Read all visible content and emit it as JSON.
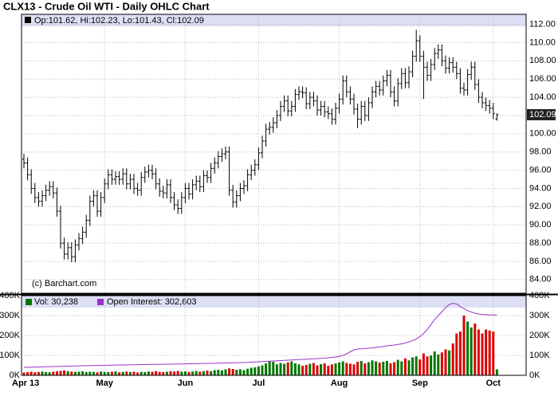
{
  "chart_data": {
    "type": "ohlc",
    "title": "CLX13 - Crude Oil WTI - Daily OHLC Chart",
    "legend_text": "Op:101.62, Hi:102.23, Lo:101.43, Cl:102.09",
    "credit": "(c) Barchart.com",
    "last_label": "102.09",
    "up_color": "#007700",
    "down_color": "#dd0000",
    "bar_color": "#000000",
    "oi_color": "#9933cc",
    "grid": true,
    "categories": [
      "Apr 13",
      null,
      null,
      null,
      null,
      null,
      null,
      null,
      null,
      null,
      null,
      null,
      null,
      null,
      null,
      null,
      null,
      null,
      null,
      null,
      null,
      null,
      "May",
      null,
      null,
      null,
      null,
      null,
      null,
      null,
      null,
      null,
      null,
      null,
      null,
      null,
      null,
      null,
      null,
      null,
      null,
      null,
      null,
      null,
      "Jun",
      null,
      null,
      null,
      null,
      null,
      null,
      null,
      null,
      null,
      null,
      null,
      null,
      null,
      null,
      null,
      null,
      null,
      null,
      null,
      "Jul",
      null,
      null,
      null,
      null,
      null,
      null,
      null,
      null,
      null,
      null,
      null,
      null,
      null,
      null,
      null,
      null,
      null,
      null,
      null,
      null,
      null,
      "Aug",
      null,
      null,
      null,
      null,
      null,
      null,
      null,
      null,
      null,
      null,
      null,
      null,
      null,
      null,
      null,
      null,
      null,
      null,
      null,
      null,
      null,
      "Sep",
      null,
      null,
      null,
      null,
      null,
      null,
      null,
      null,
      null,
      null,
      null,
      null,
      null,
      null,
      null,
      null,
      null,
      null,
      null,
      "Oct",
      null
    ],
    "open": [
      97.2,
      96.8,
      95.5,
      94,
      93,
      92.6,
      93.2,
      93.8,
      94.2,
      93.5,
      91.5,
      88,
      86.8,
      87.5,
      86.5,
      87.8,
      88.5,
      89.2,
      90.5,
      92.6,
      93.2,
      91.5,
      93,
      94.5,
      95.5,
      95,
      95.3,
      95,
      95.6,
      94.5,
      95,
      94,
      93.8,
      95.2,
      95.8,
      96,
      95.6,
      94.5,
      93.7,
      93.5,
      94.4,
      93,
      92.2,
      91.8,
      93,
      94,
      93.4,
      94.4,
      94.8,
      94.2,
      95.4,
      95.2,
      96.2,
      96.8,
      97.5,
      97.8,
      98,
      93.8,
      92.5,
      93.2,
      94,
      94.3,
      95.5,
      96,
      96.6,
      97.9,
      99.2,
      100.5,
      100.7,
      101.2,
      102,
      103,
      103.6,
      102.5,
      103,
      104.3,
      104.6,
      104.5,
      103.3,
      104,
      103.6,
      102.6,
      103,
      102.4,
      102.2,
      101.6,
      102.8,
      103.8,
      105.8,
      104.6,
      103.8,
      102.7,
      101.6,
      103,
      102,
      103.4,
      104.6,
      105.2,
      104.8,
      105.8,
      106.4,
      104.6,
      103.6,
      105.5,
      106.6,
      105.6,
      106.8,
      108.5,
      110.2,
      108.5,
      107.3,
      106.4,
      107.6,
      108.8,
      109.2,
      108,
      107.2,
      107.8,
      107.3,
      106.6,
      105,
      104.8,
      106.5,
      107.3,
      105.4,
      104,
      103.4,
      103.1,
      102.8,
      101.62
    ],
    "high": [
      97.8,
      97.4,
      96.1,
      94.6,
      93.6,
      93.8,
      94.4,
      94.8,
      94.8,
      94.1,
      92.1,
      88.6,
      88.1,
      88.1,
      88.4,
      89.1,
      89.8,
      91.1,
      93.2,
      93.8,
      93.8,
      93.6,
      95.1,
      96.1,
      96.1,
      95.9,
      95.9,
      96.2,
      96.2,
      95.6,
      95.6,
      94.6,
      95.8,
      96.4,
      96.6,
      96.6,
      96.2,
      95.1,
      94.3,
      95,
      95,
      93.6,
      92.8,
      93.6,
      94.6,
      94.6,
      95,
      95.4,
      95.4,
      96,
      96,
      96.8,
      97.4,
      98.1,
      98.4,
      98.6,
      98.6,
      94.4,
      93.8,
      94.6,
      94.9,
      96.1,
      96.6,
      97.2,
      98.5,
      99.8,
      101.1,
      101.3,
      101.8,
      102.6,
      103.6,
      104.2,
      104.2,
      103.6,
      104.9,
      105.2,
      105.2,
      105.1,
      104.6,
      104.6,
      104.2,
      103.6,
      103.6,
      103,
      102.8,
      103.4,
      104.4,
      106.4,
      106.4,
      105.2,
      104.4,
      103.3,
      103.6,
      103.6,
      104,
      105.2,
      105.8,
      105.8,
      106.4,
      107,
      107,
      105.2,
      106.1,
      107.2,
      107.2,
      107.4,
      109.1,
      111.4,
      110.8,
      109.1,
      107.9,
      108.2,
      109.4,
      109.8,
      109.8,
      108.6,
      108.4,
      108.4,
      107.9,
      107.2,
      105.6,
      107.1,
      107.9,
      107.9,
      106,
      104.6,
      104,
      103.7,
      103.4,
      102.23
    ],
    "low": [
      96.2,
      94.9,
      93.4,
      92.4,
      92,
      92,
      92.6,
      93.2,
      92.9,
      90.9,
      87.4,
      86.2,
      86.2,
      85.9,
      85.9,
      87.2,
      87.9,
      88.6,
      89.9,
      92,
      90.9,
      90.9,
      92.4,
      93.9,
      94.4,
      94.4,
      94.4,
      94.4,
      93.9,
      93.9,
      93.4,
      93.2,
      93.2,
      94.6,
      95.2,
      95,
      93.9,
      93.1,
      92.9,
      92.9,
      92.4,
      91.6,
      91.2,
      91.2,
      92.4,
      92.8,
      92.8,
      93.8,
      93.6,
      93.6,
      94.6,
      94.6,
      95.6,
      96.2,
      96.9,
      97.2,
      93.2,
      91.9,
      91.9,
      92.6,
      93.4,
      93.7,
      94.9,
      95.4,
      96,
      97.3,
      98.6,
      99.9,
      100.1,
      100.6,
      101.4,
      102.4,
      101.9,
      101.9,
      102.4,
      103.7,
      103.9,
      102.7,
      102.7,
      103,
      102,
      102,
      101.8,
      101.6,
      101,
      101,
      102.2,
      103.2,
      104,
      103.2,
      102.1,
      100.6,
      101,
      101.4,
      101.4,
      102.8,
      104,
      104.2,
      104.2,
      105.2,
      104,
      103,
      103,
      104.9,
      105,
      105,
      106.2,
      107.9,
      107.9,
      103.8,
      105.8,
      105.8,
      107,
      108.2,
      107.4,
      106.6,
      106.6,
      106.7,
      106,
      104.4,
      104.2,
      104.2,
      105.9,
      104.8,
      103.4,
      102.8,
      102.5,
      102.2,
      101.6,
      101.43
    ],
    "close": [
      96.8,
      95.5,
      94,
      93,
      92.6,
      93.2,
      93.8,
      94.2,
      93.5,
      91.5,
      88,
      86.8,
      87.5,
      86.5,
      87.8,
      88.5,
      89.2,
      90.5,
      92.6,
      93.2,
      91.5,
      93,
      94.5,
      95.5,
      95,
      95.3,
      95,
      95.6,
      94.5,
      95,
      94,
      93.8,
      95.2,
      95.8,
      96,
      95.6,
      94.5,
      93.7,
      93.5,
      94.4,
      93,
      92.2,
      91.8,
      93,
      94,
      93.4,
      94.4,
      94.8,
      94.2,
      95.4,
      95.2,
      96.2,
      96.8,
      97.5,
      97.8,
      98,
      93.8,
      92.5,
      93.2,
      94,
      94.3,
      95.5,
      96,
      96.6,
      97.9,
      99.2,
      100.5,
      100.7,
      101.2,
      102,
      103,
      103.6,
      102.5,
      103,
      104.3,
      104.6,
      104.5,
      103.3,
      104,
      103.6,
      102.6,
      103,
      102.4,
      102.2,
      101.6,
      102.8,
      103.8,
      105.8,
      104.6,
      103.8,
      102.7,
      101.6,
      103,
      102,
      103.4,
      104.6,
      105.2,
      104.8,
      105.8,
      106.4,
      104.6,
      103.6,
      105.5,
      106.6,
      105.6,
      106.8,
      108.5,
      110.2,
      108.5,
      107.3,
      106.4,
      107.6,
      108.8,
      109.2,
      108,
      107.2,
      107.8,
      107.3,
      106.6,
      105,
      104.8,
      106.5,
      107.3,
      105.4,
      104,
      103.4,
      103.1,
      102.8,
      102.2,
      102.09
    ],
    "ylim": [
      82.5,
      113.1
    ],
    "yticks": [
      {
        "value": 84,
        "label": "84.00"
      },
      {
        "value": 86,
        "label": "86.00"
      },
      {
        "value": 88,
        "label": "88.00"
      },
      {
        "value": 90,
        "label": "90.00"
      },
      {
        "value": 92,
        "label": "92.00"
      },
      {
        "value": 94,
        "label": "94.00"
      },
      {
        "value": 96,
        "label": "96.00"
      },
      {
        "value": 98,
        "label": "98.00"
      },
      {
        "value": 100,
        "label": "100.00"
      },
      {
        "value": 102,
        "label": "102.00"
      },
      {
        "value": 104,
        "label": "104.00"
      },
      {
        "value": 106,
        "label": "106.00"
      },
      {
        "value": 108,
        "label": "108.00"
      },
      {
        "value": 110,
        "label": "110.00"
      },
      {
        "value": 112,
        "label": "112.00"
      }
    ],
    "series": [
      {
        "name": "Vol: 30,238",
        "values": [
          14000,
          16000,
          18000,
          15000,
          17000,
          19000,
          16000,
          15000,
          18000,
          20000,
          22000,
          25000,
          21000,
          19000,
          17000,
          18000,
          20000,
          16000,
          18000,
          17000,
          15000,
          19000,
          17000,
          16000,
          18000,
          20000,
          15000,
          17000,
          19000,
          16000,
          18000,
          14000,
          17000,
          16000,
          19000,
          18000,
          21000,
          17000,
          16000,
          18000,
          20000,
          19000,
          22000,
          18000,
          20000,
          17000,
          19000,
          22000,
          18000,
          21000,
          24000,
          20000,
          26000,
          28000,
          25000,
          30000,
          35000,
          32000,
          28000,
          30000,
          26000,
          33000,
          38000,
          40000,
          45000,
          50000,
          60000,
          72000,
          68000,
          55000,
          62000,
          58000,
          65000,
          70000,
          60000,
          55000,
          48000,
          52000,
          58000,
          62000,
          50000,
          56000,
          60000,
          48000,
          55000,
          60000,
          65000,
          70000,
          62000,
          58000,
          55000,
          68000,
          72000,
          60000,
          66000,
          75000,
          70000,
          64000,
          68000,
          72000,
          60000,
          66000,
          78000,
          70000,
          85000,
          75000,
          90000,
          95000,
          80000,
          110000,
          95000,
          100000,
          120000,
          105000,
          115000,
          130000,
          125000,
          160000,
          210000,
          220000,
          300000,
          270000,
          240000,
          260000,
          230000,
          210000,
          230000,
          225000,
          220000,
          30238
        ]
      },
      {
        "name": "Open Interest: 302,603",
        "values": [
          40000,
          40500,
          41000,
          41500,
          42000,
          42500,
          43000,
          43500,
          44000,
          44500,
          45000,
          45500,
          46000,
          46500,
          47000,
          47500,
          48000,
          48000,
          48500,
          49000,
          49500,
          50000,
          50000,
          50500,
          51000,
          51500,
          52000,
          52000,
          52500,
          53000,
          53000,
          53500,
          54000,
          54000,
          54500,
          55000,
          55000,
          55000,
          55500,
          56000,
          56000,
          56500,
          57000,
          57000,
          57500,
          58000,
          58000,
          58500,
          59000,
          59500,
          60000,
          60000,
          60500,
          61000,
          61500,
          62000,
          62500,
          63000,
          63500,
          64000,
          64500,
          65000,
          66000,
          67000,
          68000,
          69000,
          70000,
          71000,
          72000,
          73000,
          74000,
          75000,
          76000,
          77000,
          78000,
          79000,
          80000,
          81000,
          82000,
          83000,
          84000,
          85000,
          86000,
          88000,
          90000,
          92000,
          95000,
          100000,
          108000,
          118000,
          128000,
          132000,
          133000,
          135000,
          136000,
          138000,
          140000,
          142000,
          145000,
          148000,
          150000,
          152000,
          155000,
          158000,
          162000,
          168000,
          175000,
          182000,
          195000,
          210000,
          230000,
          255000,
          280000,
          300000,
          320000,
          340000,
          355000,
          362000,
          358000,
          345000,
          335000,
          325000,
          318000,
          312000,
          308000,
          305000,
          304000,
          303000,
          302800,
          302603
        ]
      }
    ],
    "y2lim": [
      0,
      400000
    ],
    "y2ticks": [
      {
        "value": 0,
        "label": "0K"
      },
      {
        "value": 100000,
        "label": "100K"
      },
      {
        "value": 200000,
        "label": "200K"
      },
      {
        "value": 300000,
        "label": "300K"
      },
      {
        "value": 400000,
        "label": "400K"
      }
    ]
  }
}
